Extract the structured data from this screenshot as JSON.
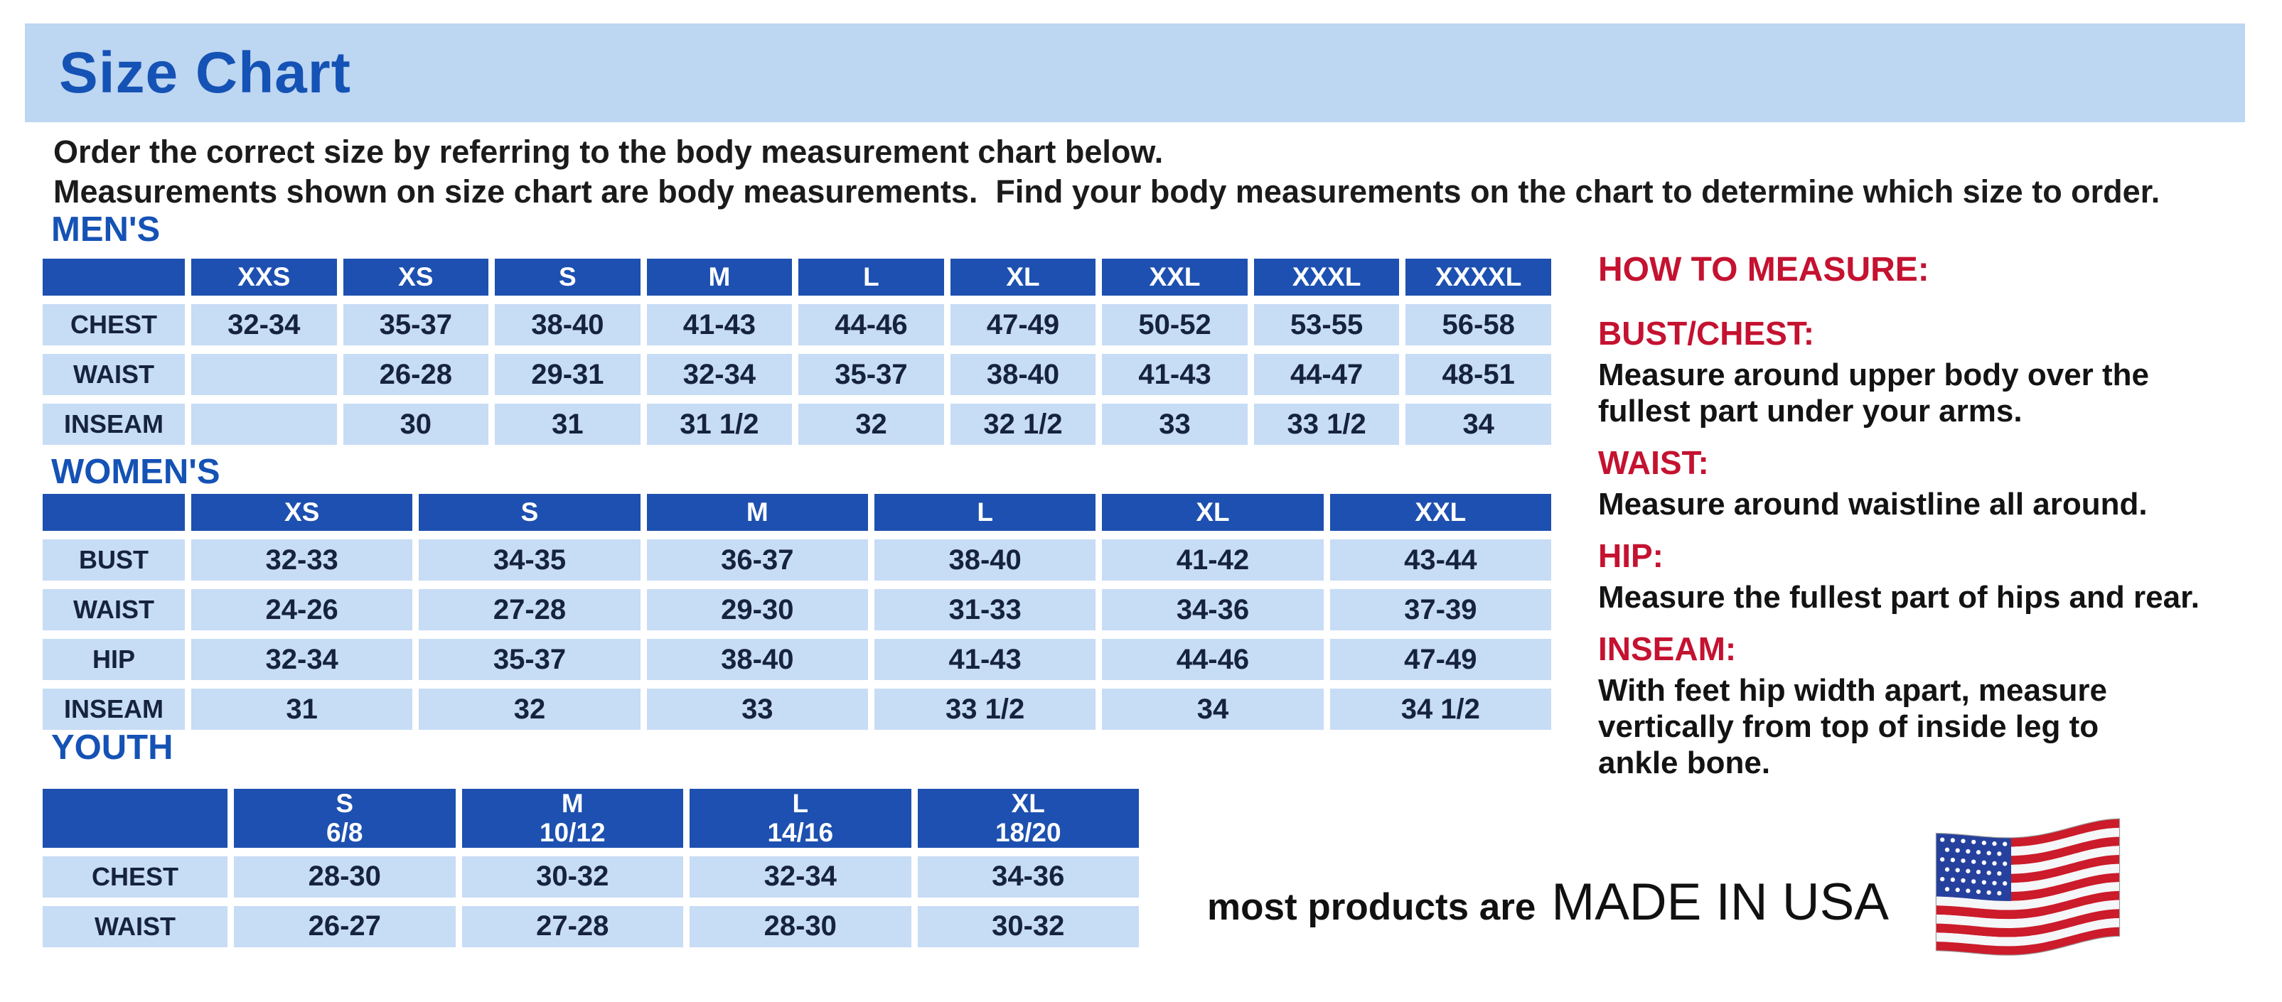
{
  "page": {
    "title": "Size Chart",
    "intro_line1": "Order the correct size by referring to the body measurement chart below.",
    "intro_line2": "Measurements shown on size chart are body measurements.  Find your body measurements on the chart to determine which size to order."
  },
  "colors": {
    "title_bar_blue": "#bdd6f1",
    "heading_blue": "#1552b5",
    "header_blue": "#1d50b0",
    "cell_blue": "#c7dcf5",
    "accent_red": "#c41230"
  },
  "tables": {
    "mens": {
      "section_title": "MEN'S",
      "header": [
        "",
        "XXS",
        "XS",
        "S",
        "M",
        "L",
        "XL",
        "XXL",
        "XXXL",
        "XXXXL"
      ],
      "rows": [
        {
          "label": "CHEST",
          "values": [
            "32-34",
            "35-37",
            "38-40",
            "41-43",
            "44-46",
            "47-49",
            "50-52",
            "53-55",
            "56-58"
          ]
        },
        {
          "label": "WAIST",
          "values": [
            "",
            "26-28",
            "29-31",
            "32-34",
            "35-37",
            "38-40",
            "41-43",
            "44-47",
            "48-51"
          ]
        },
        {
          "label": "INSEAM",
          "values": [
            "",
            "30",
            "31",
            "31 1/2",
            "32",
            "32 1/2",
            "33",
            "33 1/2",
            "34"
          ]
        }
      ]
    },
    "womens": {
      "section_title": "WOMEN'S",
      "header": [
        "",
        "XS",
        "S",
        "M",
        "L",
        "XL",
        "XXL"
      ],
      "rows": [
        {
          "label": "BUST",
          "values": [
            "32-33",
            "34-35",
            "36-37",
            "38-40",
            "41-42",
            "43-44"
          ]
        },
        {
          "label": "WAIST",
          "values": [
            "24-26",
            "27-28",
            "29-30",
            "31-33",
            "34-36",
            "37-39"
          ]
        },
        {
          "label": "HIP",
          "values": [
            "32-34",
            "35-37",
            "38-40",
            "41-43",
            "44-46",
            "47-49"
          ]
        },
        {
          "label": "INSEAM",
          "values": [
            "31",
            "32",
            "33",
            "33 1/2",
            "34",
            "34 1/2"
          ]
        }
      ]
    },
    "youth": {
      "section_title": "YOUTH",
      "header": [
        "",
        "S\n6/8",
        "M\n10/12",
        "L\n14/16",
        "XL\n18/20"
      ],
      "rows": [
        {
          "label": "CHEST",
          "values": [
            "28-30",
            "30-32",
            "32-34",
            "34-36"
          ]
        },
        {
          "label": "WAIST",
          "values": [
            "26-27",
            "27-28",
            "28-30",
            "30-32"
          ]
        }
      ]
    }
  },
  "how_to_measure": {
    "title": "HOW TO MEASURE:",
    "items": [
      {
        "label": "BUST/CHEST:",
        "text": "Measure around upper body over the\nfullest part under your arms."
      },
      {
        "label": "WAIST:",
        "text": "Measure around waistline all around."
      },
      {
        "label": "HIP:",
        "text": "Measure the fullest part of hips and rear."
      },
      {
        "label": "INSEAM:",
        "text": "With feet hip width apart, measure\nvertically from top of inside leg to\nankle bone."
      }
    ]
  },
  "footer": {
    "prefix": "most products are",
    "emphasis": "MADE IN USA",
    "flag_icon": "usa-flag-icon",
    "flag_colors": {
      "red": "#cc1b2a",
      "white": "#f4f6f8",
      "blue": "#26419d"
    }
  }
}
